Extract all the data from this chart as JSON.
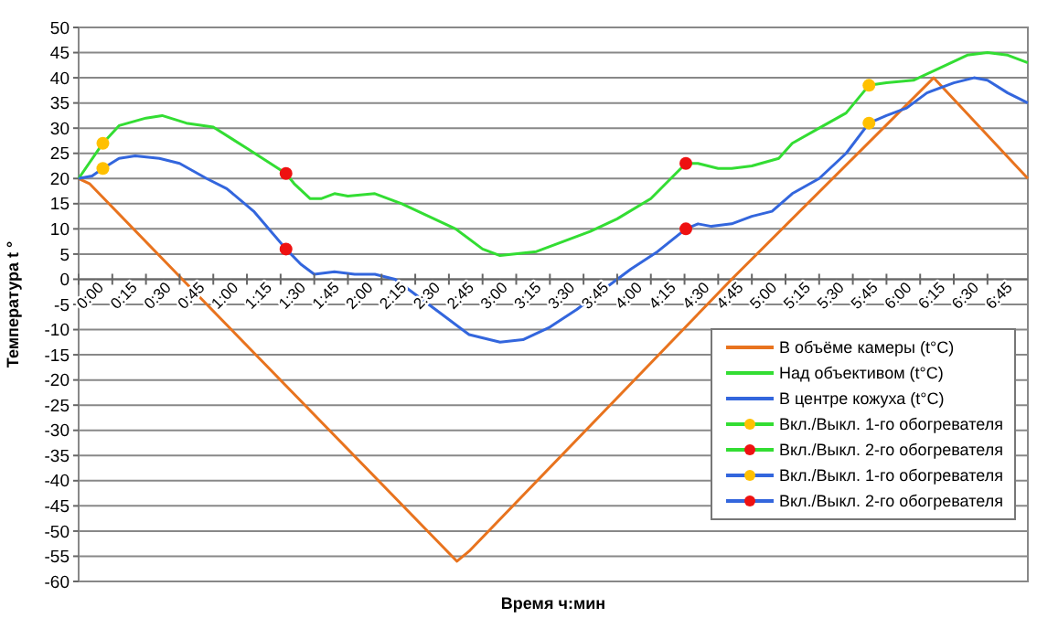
{
  "chart_data": {
    "type": "line",
    "xlabel": "Время ч:мин",
    "ylabel": "Температура t °",
    "xlim": [
      0,
      7.05
    ],
    "ylim": [
      -60,
      50
    ],
    "xticks": [
      {
        "value": 0,
        "label": "0:00"
      },
      {
        "value": 0.25,
        "label": "0:15"
      },
      {
        "value": 0.5,
        "label": "0:30"
      },
      {
        "value": 0.75,
        "label": "0:45"
      },
      {
        "value": 1,
        "label": "1:00"
      },
      {
        "value": 1.25,
        "label": "1:15"
      },
      {
        "value": 1.5,
        "label": "1:30"
      },
      {
        "value": 1.75,
        "label": "1:45"
      },
      {
        "value": 2,
        "label": "2:00"
      },
      {
        "value": 2.25,
        "label": "2:15"
      },
      {
        "value": 2.5,
        "label": "2:30"
      },
      {
        "value": 2.75,
        "label": "2:45"
      },
      {
        "value": 3,
        "label": "3:00"
      },
      {
        "value": 3.25,
        "label": "3:15"
      },
      {
        "value": 3.5,
        "label": "3:30"
      },
      {
        "value": 3.75,
        "label": "3:45"
      },
      {
        "value": 4,
        "label": "4:00"
      },
      {
        "value": 4.25,
        "label": "4:15"
      },
      {
        "value": 4.5,
        "label": "4:30"
      },
      {
        "value": 4.75,
        "label": "4:45"
      },
      {
        "value": 5,
        "label": "5:00"
      },
      {
        "value": 5.25,
        "label": "5:15"
      },
      {
        "value": 5.5,
        "label": "5:30"
      },
      {
        "value": 5.75,
        "label": "5:45"
      },
      {
        "value": 6,
        "label": "6:00"
      },
      {
        "value": 6.25,
        "label": "6:15"
      },
      {
        "value": 6.5,
        "label": "6:30"
      },
      {
        "value": 6.75,
        "label": "6:45"
      }
    ],
    "yticks": [
      -60,
      -55,
      -50,
      -45,
      -40,
      -35,
      -30,
      -25,
      -20,
      -15,
      -10,
      -5,
      0,
      5,
      10,
      15,
      20,
      25,
      30,
      35,
      40,
      45,
      50
    ],
    "grid": "y",
    "legend": "bottom right",
    "marker": "none",
    "line_style": "solid",
    "series": [
      {
        "name": "В объёме камеры (t°C)",
        "color": "#e8731e",
        "x": [
          0,
          0.08,
          0.77,
          2.81,
          2.9,
          4.85,
          6.35,
          7.05
        ],
        "values": [
          20,
          19,
          0,
          -56,
          -54,
          0,
          40,
          20
        ]
      },
      {
        "name": "Над объективом (t°C)",
        "color": "#33dd33",
        "x": [
          0,
          0.18,
          0.3,
          0.5,
          0.62,
          0.8,
          1,
          1.25,
          1.54,
          1.6,
          1.72,
          1.8,
          1.9,
          2,
          2.2,
          2.4,
          2.6,
          2.8,
          3,
          3.13,
          3.4,
          3.6,
          3.8,
          4,
          4.25,
          4.51,
          4.6,
          4.75,
          4.85,
          5,
          5.2,
          5.3,
          5.5,
          5.7,
          5.87,
          6,
          6.2,
          6.4,
          6.6,
          6.75,
          6.9,
          7.05
        ],
        "values": [
          20,
          27,
          30.5,
          32,
          32.5,
          31,
          30.2,
          26,
          21,
          19,
          16,
          16,
          17,
          16.5,
          17,
          15,
          12.5,
          10,
          6,
          4.7,
          5.5,
          7.5,
          9.5,
          12,
          16,
          23,
          23,
          22,
          22,
          22.5,
          24,
          27,
          30,
          33,
          38.5,
          39,
          39.5,
          42,
          44.5,
          45,
          44.5,
          43
        ]
      },
      {
        "name": "В центре кожуха (t°C)",
        "color": "#3366dd",
        "x": [
          0,
          0.1,
          0.18,
          0.3,
          0.42,
          0.6,
          0.75,
          0.95,
          1.1,
          1.3,
          1.54,
          1.65,
          1.75,
          1.9,
          2.05,
          2.2,
          2.35,
          2.5,
          2.7,
          2.9,
          3.13,
          3.3,
          3.5,
          3.7,
          3.9,
          4.1,
          4.3,
          4.51,
          4.6,
          4.7,
          4.85,
          5,
          5.15,
          5.3,
          5.5,
          5.7,
          5.87,
          6,
          6.15,
          6.3,
          6.5,
          6.65,
          6.75,
          6.9,
          7.05
        ],
        "values": [
          20,
          20.5,
          22,
          24,
          24.5,
          24,
          23,
          20,
          18,
          13.5,
          6,
          3,
          1,
          1.5,
          1,
          1,
          0,
          -3,
          -7,
          -11,
          -12.5,
          -12,
          -9.5,
          -6,
          -2,
          2,
          5.5,
          10,
          11,
          10.5,
          11,
          12.5,
          13.5,
          17,
          20,
          25,
          31,
          32.5,
          34,
          37,
          39,
          40,
          39.5,
          37,
          35
        ]
      },
      {
        "name": "Вкл./Выкл. 1-го обогревателя",
        "type": "scatter",
        "marker": "circle",
        "color": "#ffc000",
        "x": [
          0.18,
          5.87
        ],
        "values": [
          27,
          38.5
        ]
      },
      {
        "name": "Вкл./Выкл. 2-го обогревателя",
        "type": "scatter",
        "marker": "circle",
        "color": "#ee1111",
        "x": [
          1.54,
          4.51
        ],
        "values": [
          21,
          23
        ]
      },
      {
        "name": "Вкл./Выкл. 1-го обогревателя",
        "type": "scatter",
        "marker": "circle",
        "color": "#ffc000",
        "x": [
          0.18,
          5.87
        ],
        "values": [
          22,
          31
        ]
      },
      {
        "name": "Вкл./Выкл. 2-го обогревателя",
        "type": "scatter",
        "marker": "circle",
        "color": "#ee1111",
        "x": [
          1.54,
          4.51
        ],
        "values": [
          6,
          10
        ]
      }
    ]
  }
}
